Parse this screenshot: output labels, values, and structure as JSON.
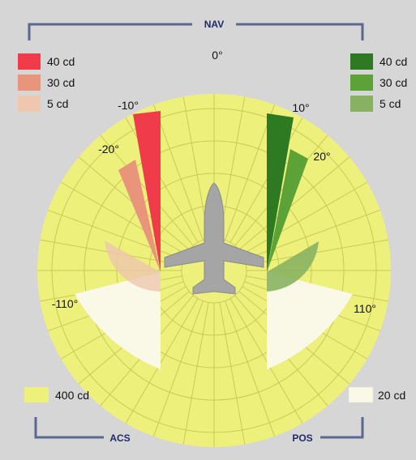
{
  "labels": {
    "nav": "NAV",
    "acs": "ACS",
    "pos": "POS",
    "deg_0": "0°",
    "deg_m10": "-10°",
    "deg_m20": "-20°",
    "deg_10": "10°",
    "deg_20": "20°",
    "deg_m110": "-110°",
    "deg_110": "110°"
  },
  "legend_red": [
    {
      "text": "40 cd",
      "color": "#f03c4a"
    },
    {
      "text": "30 cd",
      "color": "#e9957b"
    },
    {
      "text": "5 cd",
      "color": "#eec7ae"
    }
  ],
  "legend_green": [
    {
      "text": "40 cd",
      "color": "#2d7a22"
    },
    {
      "text": "30 cd",
      "color": "#5da236"
    },
    {
      "text": "5 cd",
      "color": "#88b262"
    }
  ],
  "legend_bottom": {
    "acs": {
      "text": "400 cd",
      "color": "#eef07c"
    },
    "pos": {
      "text": "20 cd",
      "color": "#faf8e6"
    }
  },
  "colors": {
    "background": "#d6d6d6",
    "circle": "#eef07c",
    "grid": "#c9c95a",
    "bracket": "#5c6890",
    "aircraft": "#a5a5a5"
  }
}
